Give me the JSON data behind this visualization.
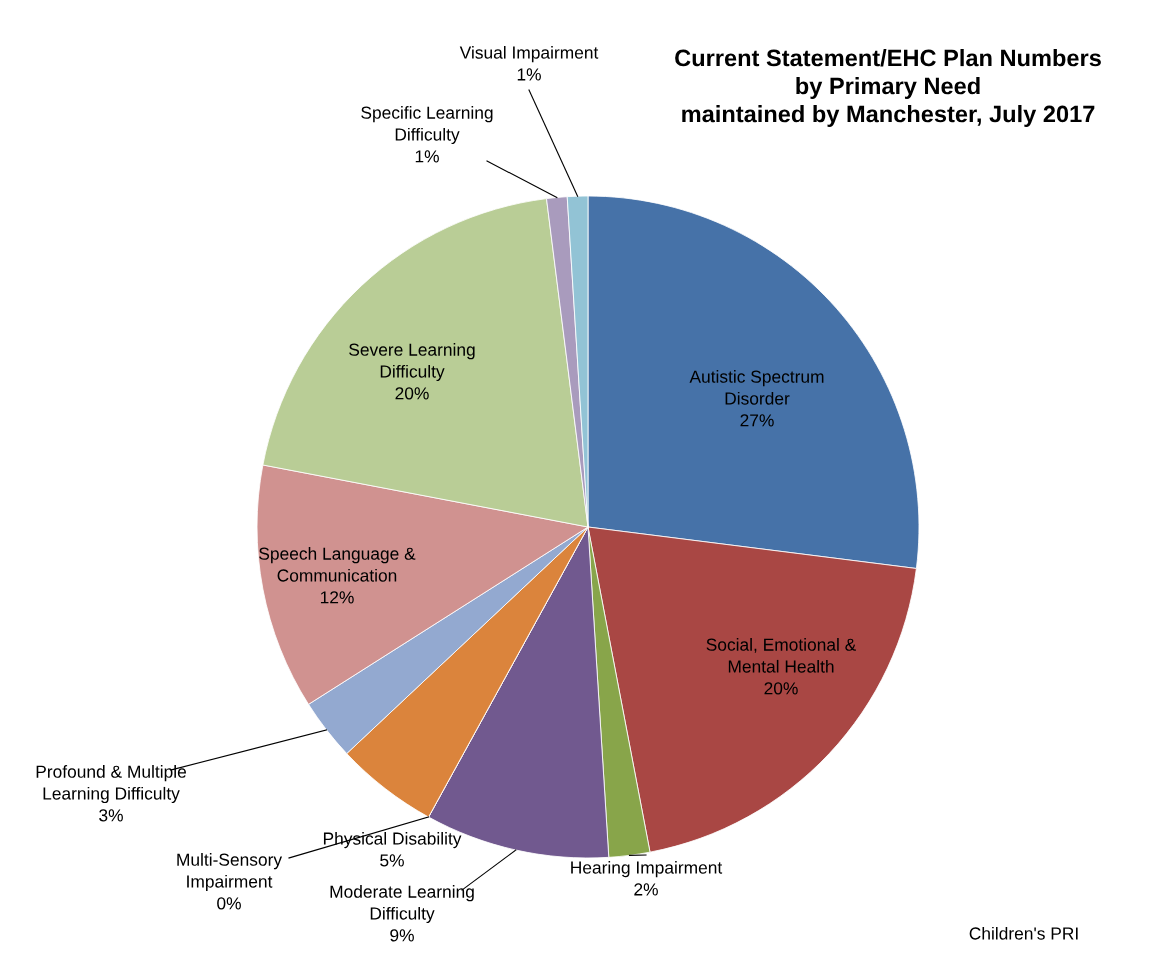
{
  "chart_data": {
    "type": "pie",
    "title": "Current Statement/EHC Plan Numbers\nby Primary Need\nmaintained by Manchester, July 2017",
    "categories": [
      "Autistic Spectrum Disorder",
      "Social, Emotional & Mental Health",
      "Hearing Impairment",
      "Moderate Learning Difficulty",
      "Multi-Sensory Impairment",
      "Physical Disability",
      "Profound & Multiple Learning Difficulty",
      "Speech Language & Communication",
      "Severe Learning Difficulty",
      "Specific Learning Difficulty",
      "Visual Impairment"
    ],
    "values": [
      27,
      20,
      2,
      9,
      0,
      5,
      3,
      12,
      20,
      1,
      1
    ],
    "colors": [
      "#4672a8",
      "#a94744",
      "#88a54a",
      "#71598f",
      "#2f98b0",
      "#db843c",
      "#93a9d0",
      "#d09290",
      "#b9cd96",
      "#a99bbd",
      "#92c3d5"
    ],
    "value_labels": [
      "27%",
      "20%",
      "2%",
      "9%",
      "0%",
      "5%",
      "3%",
      "12%",
      "20%",
      "1%",
      "1%"
    ],
    "legend": false,
    "annotations": [
      "Children's PRI"
    ]
  }
}
